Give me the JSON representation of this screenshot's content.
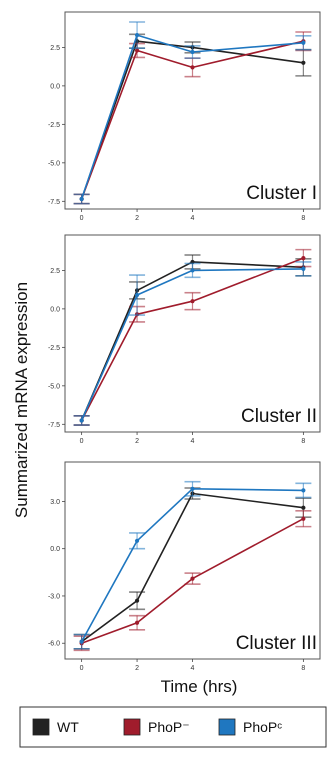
{
  "chart_data": {
    "type": "line",
    "xlabel": "Time (hrs)",
    "ylabel": "Summarized mRNA expression",
    "x": [
      0,
      2,
      4,
      8
    ],
    "xticks": [
      "0",
      "2",
      "4",
      "8"
    ],
    "legend": {
      "position": "bottom",
      "items": [
        {
          "label": "WT",
          "color": "#222222"
        },
        {
          "label": "PhoP⁻",
          "color": "#a01c2c"
        },
        {
          "label": "PhoPᶜ",
          "color": "#1f77c0"
        }
      ]
    },
    "panels": [
      {
        "label": "Cluster I",
        "ylim": [
          -8.0,
          4.8
        ],
        "yticks": [
          "-7.5",
          "-5.0",
          "-2.5",
          "0.0",
          "2.5"
        ],
        "series": [
          {
            "name": "WT",
            "color": "#222222",
            "values": [
              -7.35,
              2.9,
              2.5,
              1.5
            ],
            "errors": [
              0.3,
              0.45,
              0.35,
              0.85
            ]
          },
          {
            "name": "PhoP⁻",
            "color": "#a01c2c",
            "values": [
              -7.35,
              2.3,
              1.2,
              2.9
            ],
            "errors": [
              0.3,
              0.45,
              0.6,
              0.6
            ]
          },
          {
            "name": "PhoPᶜ",
            "color": "#1f77c0",
            "values": [
              -7.35,
              3.3,
              2.2,
              2.8
            ],
            "errors": [
              0.3,
              0.85,
              0.4,
              0.45
            ]
          }
        ]
      },
      {
        "label": "Cluster II",
        "ylim": [
          -8.0,
          4.8
        ],
        "yticks": [
          "-7.5",
          "-5.0",
          "-2.5",
          "0.0",
          "2.5"
        ],
        "series": [
          {
            "name": "WT",
            "color": "#222222",
            "values": [
              -7.25,
              1.2,
              3.05,
              2.7
            ],
            "errors": [
              0.3,
              0.55,
              0.45,
              0.55
            ]
          },
          {
            "name": "PhoP⁻",
            "color": "#a01c2c",
            "values": [
              -7.25,
              -0.35,
              0.5,
              3.3
            ],
            "errors": [
              0.3,
              0.5,
              0.55,
              0.55
            ]
          },
          {
            "name": "PhoPᶜ",
            "color": "#1f77c0",
            "values": [
              -7.25,
              0.9,
              2.5,
              2.6
            ],
            "errors": [
              0.3,
              1.3,
              0.45,
              0.45
            ]
          }
        ]
      },
      {
        "label": "Cluster III",
        "ylim": [
          -7.0,
          5.5
        ],
        "yticks": [
          "-6.0",
          "-3.0",
          "0.0",
          "3.0"
        ],
        "series": [
          {
            "name": "WT",
            "color": "#222222",
            "values": [
              -5.9,
              -3.3,
              3.5,
              2.6
            ],
            "errors": [
              0.45,
              0.55,
              0.35,
              0.6
            ]
          },
          {
            "name": "PhoP⁻",
            "color": "#a01c2c",
            "values": [
              -6.0,
              -4.7,
              -1.9,
              1.9
            ],
            "errors": [
              0.45,
              0.45,
              0.35,
              0.5
            ]
          },
          {
            "name": "PhoPᶜ",
            "color": "#1f77c0",
            "values": [
              -5.9,
              0.5,
              3.8,
              3.7
            ],
            "errors": [
              0.45,
              0.5,
              0.45,
              0.45
            ]
          }
        ]
      }
    ]
  }
}
